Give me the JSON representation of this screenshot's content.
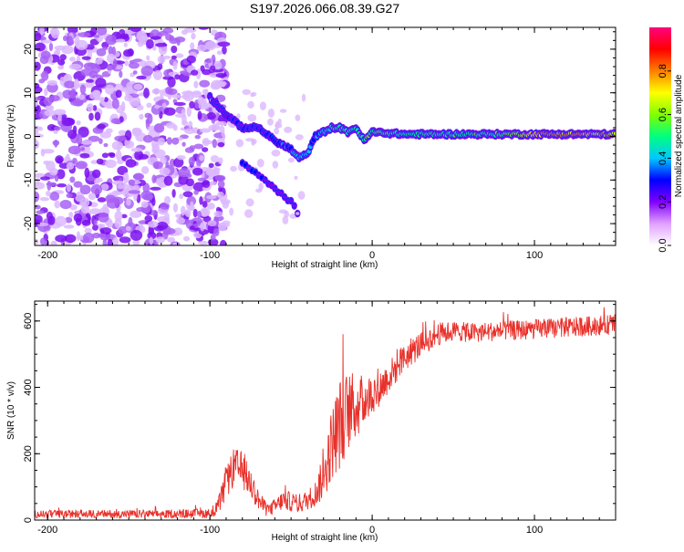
{
  "title": "S197.2026.066.08.39.G27",
  "chart_data": [
    {
      "type": "heatmap",
      "xlabel": "Height of straight line (km)",
      "ylabel": "Frequency (Hz)",
      "xlim": [
        -208,
        150
      ],
      "ylim": [
        -25,
        25
      ],
      "xticks": [
        -200,
        -100,
        0,
        100
      ],
      "yticks": [
        -20,
        -10,
        0,
        10,
        20
      ],
      "colorbar": {
        "label": "Normalized spectral amplitude",
        "range": [
          0,
          1
        ],
        "ticks": [
          0.0,
          0.2,
          0.4,
          0.6,
          0.8
        ],
        "colors": [
          "#ffffff",
          "#e0a0ff",
          "#8000ff",
          "#0000ff",
          "#00c8ff",
          "#00ff80",
          "#80ff00",
          "#ffff00",
          "#ff8000",
          "#ff0000",
          "#ff0080"
        ]
      },
      "trace": {
        "x": [
          -100,
          -90,
          -80,
          -70,
          -60,
          -50,
          -45,
          -40,
          -35,
          -30,
          -25,
          -20,
          -15,
          -10,
          -5,
          0,
          20,
          50,
          80,
          110,
          150
        ],
        "y": [
          9,
          5,
          2,
          2,
          -1,
          -3,
          -5,
          -4,
          0,
          1,
          2,
          2,
          1,
          2,
          -1,
          1,
          0.5,
          0.5,
          0.5,
          0.5,
          0.5
        ],
        "amplitude": [
          0.15,
          0.2,
          0.25,
          0.25,
          0.3,
          0.35,
          0.45,
          0.35,
          0.3,
          0.4,
          0.45,
          0.5,
          0.5,
          0.5,
          0.5,
          0.55,
          0.5,
          0.5,
          0.55,
          0.8,
          0.75
        ]
      },
      "branch": {
        "x": [
          -80,
          -70,
          -60,
          -50,
          -45
        ],
        "y": [
          -6,
          -9,
          -12,
          -15,
          -18
        ],
        "amplitude": [
          0.3,
          0.25,
          0.2,
          0.15,
          0.1
        ]
      },
      "noise_region": {
        "x_from": -208,
        "x_to": -100
      }
    },
    {
      "type": "line",
      "xlabel": "Height of straight line (km)",
      "ylabel": "SNR (10 * v/v)",
      "xlim": [
        -208,
        150
      ],
      "ylim": [
        0,
        660
      ],
      "xticks": [
        -200,
        -100,
        0,
        100
      ],
      "yticks": [
        0,
        200,
        400,
        600
      ],
      "color": "#e8302a",
      "envelope": {
        "x": [
          -208,
          -130,
          -100,
          -95,
          -90,
          -85,
          -80,
          -75,
          -70,
          -65,
          -60,
          -55,
          -50,
          -45,
          -40,
          -35,
          -30,
          -25,
          -20,
          -15,
          -10,
          -5,
          0,
          5,
          10,
          20,
          30,
          40,
          50,
          60,
          80,
          100,
          120,
          150
        ],
        "y": [
          18,
          18,
          20,
          40,
          110,
          160,
          150,
          110,
          60,
          30,
          40,
          60,
          55,
          50,
          60,
          80,
          130,
          230,
          290,
          330,
          340,
          360,
          380,
          400,
          430,
          490,
          530,
          560,
          570,
          565,
          570,
          575,
          580,
          590
        ],
        "spread": [
          12,
          12,
          15,
          25,
          50,
          60,
          55,
          45,
          30,
          20,
          25,
          30,
          30,
          30,
          30,
          40,
          70,
          110,
          140,
          120,
          100,
          80,
          60,
          55,
          50,
          45,
          40,
          35,
          30,
          30,
          30,
          30,
          30,
          30
        ]
      }
    }
  ]
}
